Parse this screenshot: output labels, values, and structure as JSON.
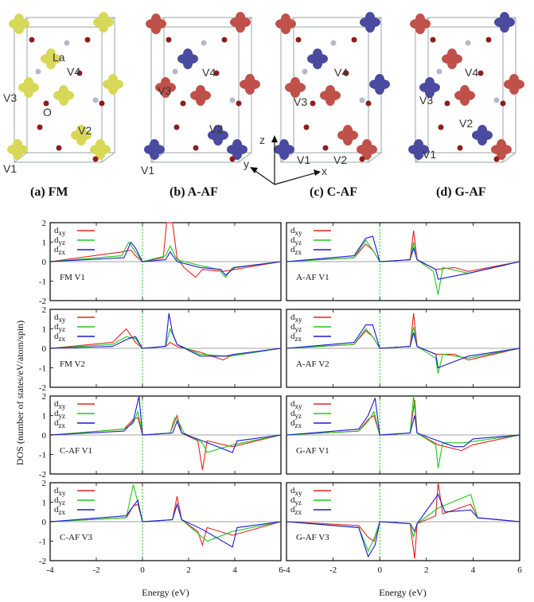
{
  "structures": {
    "panels": [
      {
        "title": "(a) FM",
        "labels": [
          "La",
          "V4",
          "V3",
          "O",
          "V2",
          "V1"
        ]
      },
      {
        "title": "(b) A-AF",
        "labels": [
          "V4",
          "V3",
          "V2",
          "V1"
        ]
      },
      {
        "title": "(c) C-AF",
        "labels": [
          "V4",
          "V3",
          "V2",
          "V1"
        ]
      },
      {
        "title": "(d) G-AF",
        "labels": [
          "V4",
          "V3",
          "V2",
          "V1"
        ]
      }
    ],
    "axes": {
      "z": "z",
      "y": "y",
      "x": "x"
    },
    "colors": {
      "fm": "#d8d858",
      "up": "#c0504a",
      "down": "#4a4aa0",
      "cell": "#9aa6a6",
      "oxygen": "#8e1d1d",
      "la": "#b4b8c8"
    }
  },
  "chart_data": {
    "type": "line",
    "ylabel": "DOS (number of states/eV/atom/spin)",
    "xlabel": "Energy (eV)",
    "xlim": [
      -4,
      6
    ],
    "ylim": [
      -2,
      2
    ],
    "xticks": [
      "-4",
      "-2",
      "0",
      "2",
      "4",
      "6"
    ],
    "yticks": [
      "2",
      "1",
      "0",
      "-1",
      "-2"
    ],
    "fermi_level": 0,
    "legend": [
      "d",
      "d",
      "d"
    ],
    "legend_sub": [
      "xy",
      "yz",
      "zx"
    ],
    "colors": {
      "dxy": "#e8221e",
      "dyz": "#1ec81e",
      "dzx": "#1a1ad8",
      "fermi": "#1cc81c"
    },
    "panels": [
      {
        "label": "FM V1",
        "dxy": [
          [
            -0.9,
            0.5
          ],
          [
            -0.5,
            0.6
          ],
          [
            -0.3,
            0.3
          ],
          [
            0,
            0
          ],
          [
            0.9,
            0.2
          ],
          [
            1.05,
            2
          ],
          [
            1.3,
            2
          ],
          [
            1.5,
            0.2
          ],
          [
            1.8,
            -0.3
          ],
          [
            2.3,
            -0.8
          ],
          [
            2.6,
            -0.4
          ],
          [
            3.5,
            -0.5
          ],
          [
            4,
            -0.4
          ]
        ],
        "dyz": [
          [
            -0.9,
            0.3
          ],
          [
            -0.6,
            1.0
          ],
          [
            -0.3,
            0.5
          ],
          [
            0,
            0
          ],
          [
            1,
            0.3
          ],
          [
            1.2,
            0.8
          ],
          [
            1.5,
            0.1
          ],
          [
            2.5,
            -0.2
          ],
          [
            3.3,
            -0.4
          ],
          [
            3.6,
            -0.8
          ],
          [
            3.9,
            -0.3
          ]
        ],
        "dzx": [
          [
            -0.8,
            0.2
          ],
          [
            -0.5,
            1.0
          ],
          [
            -0.3,
            0.7
          ],
          [
            0,
            0
          ],
          [
            1,
            0.1
          ],
          [
            1.2,
            0.5
          ],
          [
            1.5,
            0
          ],
          [
            2.5,
            -0.3
          ],
          [
            3.4,
            -0.4
          ],
          [
            3.6,
            -0.7
          ],
          [
            4,
            -0.3
          ]
        ]
      },
      {
        "label": "A-AF V1",
        "dxy": [
          [
            -1.1,
            0.2
          ],
          [
            -0.6,
            0.9
          ],
          [
            -0.3,
            0.6
          ],
          [
            0,
            0
          ],
          [
            1.3,
            0.1
          ],
          [
            1.45,
            1.6
          ],
          [
            1.6,
            0.1
          ],
          [
            2.4,
            -0.4
          ],
          [
            3.2,
            -0.3
          ],
          [
            3.8,
            -0.5
          ]
        ],
        "dyz": [
          [
            -1.1,
            0.2
          ],
          [
            -0.6,
            1.1
          ],
          [
            -0.3,
            0.6
          ],
          [
            0,
            0
          ],
          [
            1.3,
            0.1
          ],
          [
            1.45,
            1.0
          ],
          [
            1.6,
            0.1
          ],
          [
            2.3,
            -0.5
          ],
          [
            2.5,
            -1.7
          ],
          [
            2.7,
            -0.3
          ],
          [
            3.8,
            -0.6
          ]
        ],
        "dzx": [
          [
            -1.1,
            0.3
          ],
          [
            -0.6,
            1.2
          ],
          [
            -0.3,
            1.3
          ],
          [
            0,
            0
          ],
          [
            1.3,
            0.1
          ],
          [
            1.45,
            0.7
          ],
          [
            1.6,
            0.1
          ],
          [
            2.4,
            -0.4
          ],
          [
            2.5,
            -0.9
          ],
          [
            3.8,
            -0.6
          ]
        ]
      },
      {
        "label": "FM V2",
        "dxy": [
          [
            -1.3,
            0.3
          ],
          [
            -0.7,
            1.0
          ],
          [
            -0.3,
            0.3
          ],
          [
            0,
            0
          ],
          [
            1,
            0.1
          ],
          [
            1.2,
            0.3
          ],
          [
            1.5,
            0.1
          ],
          [
            2.5,
            -0.2
          ],
          [
            3.5,
            -0.6
          ],
          [
            3.8,
            -0.4
          ]
        ],
        "dyz": [
          [
            -1.3,
            0.2
          ],
          [
            -0.7,
            0.6
          ],
          [
            -0.3,
            0.5
          ],
          [
            0,
            0
          ],
          [
            1,
            0.1
          ],
          [
            1.2,
            1.0
          ],
          [
            1.5,
            0.2
          ],
          [
            2.5,
            -0.3
          ],
          [
            3.5,
            -0.4
          ],
          [
            3.8,
            -0.4
          ]
        ],
        "dzx": [
          [
            -1.3,
            0.1
          ],
          [
            -0.6,
            0.5
          ],
          [
            -0.3,
            0.6
          ],
          [
            0,
            0
          ],
          [
            1,
            0.1
          ],
          [
            1.15,
            1.8
          ],
          [
            1.3,
            0.8
          ],
          [
            1.5,
            0.2
          ],
          [
            2.5,
            -0.4
          ],
          [
            3.6,
            -0.4
          ],
          [
            4,
            -0.3
          ]
        ]
      },
      {
        "label": "A-AF V2",
        "dxy": [
          [
            -1.1,
            0.2
          ],
          [
            -0.6,
            0.9
          ],
          [
            -0.3,
            0.6
          ],
          [
            0,
            0
          ],
          [
            1.3,
            0.1
          ],
          [
            1.45,
            1.8
          ],
          [
            1.6,
            0.1
          ],
          [
            2.4,
            -0.3
          ],
          [
            3.2,
            -0.3
          ],
          [
            3.8,
            -0.6
          ]
        ],
        "dyz": [
          [
            -1.1,
            0.2
          ],
          [
            -0.6,
            1.0
          ],
          [
            -0.3,
            0.6
          ],
          [
            0,
            0
          ],
          [
            1.3,
            0.1
          ],
          [
            1.45,
            1.1
          ],
          [
            1.6,
            0.1
          ],
          [
            2.4,
            -0.5
          ],
          [
            2.5,
            -1.3
          ],
          [
            2.7,
            -0.3
          ],
          [
            3.8,
            -0.5
          ]
        ],
        "dzx": [
          [
            -1.1,
            0.3
          ],
          [
            -0.6,
            1.2
          ],
          [
            -0.3,
            1.2
          ],
          [
            0,
            0
          ],
          [
            1.3,
            0.1
          ],
          [
            1.45,
            0.8
          ],
          [
            1.6,
            0.1
          ],
          [
            2.4,
            -0.3
          ],
          [
            2.5,
            -1.0
          ],
          [
            3.8,
            -0.4
          ]
        ]
      },
      {
        "label": "C-AF V1",
        "dxy": [
          [
            -0.8,
            0.3
          ],
          [
            -0.4,
            0.8
          ],
          [
            -0.2,
            0.9
          ],
          [
            0,
            0
          ],
          [
            1.2,
            0.1
          ],
          [
            1.5,
            1.0
          ],
          [
            1.7,
            0.1
          ],
          [
            2.4,
            -0.3
          ],
          [
            2.6,
            -1.8
          ],
          [
            2.8,
            -0.3
          ],
          [
            3.9,
            -0.6
          ]
        ],
        "dyz": [
          [
            -0.8,
            0.3
          ],
          [
            -0.4,
            0.6
          ],
          [
            -0.2,
            1.2
          ],
          [
            0,
            0
          ],
          [
            1.2,
            0.1
          ],
          [
            1.4,
            0.9
          ],
          [
            1.6,
            0.6
          ],
          [
            1.8,
            0.1
          ],
          [
            2.6,
            -0.4
          ],
          [
            2.8,
            -0.9
          ],
          [
            3.9,
            -0.5
          ]
        ],
        "dzx": [
          [
            -0.8,
            0.2
          ],
          [
            -0.4,
            0.7
          ],
          [
            -0.15,
            2
          ],
          [
            0,
            0
          ],
          [
            1.3,
            0.1
          ],
          [
            1.5,
            0.7
          ],
          [
            1.7,
            0.1
          ],
          [
            2.6,
            -0.3
          ],
          [
            3.9,
            -0.9
          ],
          [
            4.1,
            -0.3
          ]
        ]
      },
      {
        "label": "G-AF V1",
        "dxy": [
          [
            -0.9,
            0.2
          ],
          [
            -0.5,
            0.8
          ],
          [
            -0.25,
            1.0
          ],
          [
            0,
            0
          ],
          [
            1.3,
            0.1
          ],
          [
            1.5,
            1.8
          ],
          [
            1.6,
            0.1
          ],
          [
            2.5,
            -0.5
          ],
          [
            3.5,
            -0.8
          ],
          [
            4,
            -0.5
          ]
        ],
        "dyz": [
          [
            -0.9,
            0.2
          ],
          [
            -0.5,
            0.7
          ],
          [
            -0.25,
            1.2
          ],
          [
            0,
            0
          ],
          [
            1.3,
            0.1
          ],
          [
            1.45,
            2
          ],
          [
            1.6,
            0.1
          ],
          [
            2.4,
            -0.5
          ],
          [
            2.5,
            -1.7
          ],
          [
            2.7,
            -0.4
          ],
          [
            3.6,
            -0.4
          ]
        ],
        "dzx": [
          [
            -0.9,
            0.3
          ],
          [
            -0.5,
            1.0
          ],
          [
            -0.2,
            1.9
          ],
          [
            0,
            0
          ],
          [
            1.3,
            0.1
          ],
          [
            1.5,
            1.0
          ],
          [
            1.6,
            0.1
          ],
          [
            2.5,
            -0.3
          ],
          [
            3.2,
            -0.6
          ],
          [
            3.6,
            -0.6
          ],
          [
            4,
            -0.2
          ]
        ]
      },
      {
        "label": "C-AF V3",
        "dxy": [
          [
            -0.7,
            0.2
          ],
          [
            -0.4,
            0.8
          ],
          [
            -0.2,
            0.9
          ],
          [
            0,
            0
          ],
          [
            1.3,
            0.1
          ],
          [
            1.5,
            1.3
          ],
          [
            1.7,
            0.1
          ],
          [
            2.4,
            -0.5
          ],
          [
            2.6,
            -1.2
          ],
          [
            2.8,
            -0.3
          ],
          [
            3.9,
            -0.7
          ]
        ],
        "dyz": [
          [
            -0.7,
            0.2
          ],
          [
            -0.4,
            1.9
          ],
          [
            -0.2,
            1.0
          ],
          [
            0,
            0
          ],
          [
            1.3,
            0.1
          ],
          [
            1.5,
            0.9
          ],
          [
            1.7,
            0.1
          ],
          [
            2.6,
            -0.8
          ],
          [
            2.8,
            -1.0
          ],
          [
            3.9,
            -0.5
          ]
        ],
        "dzx": [
          [
            -0.7,
            0.3
          ],
          [
            -0.4,
            0.8
          ],
          [
            -0.2,
            1.1
          ],
          [
            0,
            0
          ],
          [
            1.3,
            0.1
          ],
          [
            1.5,
            0.9
          ],
          [
            1.7,
            0.1
          ],
          [
            2.6,
            -0.4
          ],
          [
            3.9,
            -1.3
          ],
          [
            4.1,
            -0.3
          ]
        ]
      },
      {
        "label": "G-AF V3",
        "dxy": [
          [
            -0.9,
            -0.2
          ],
          [
            -0.5,
            -0.8
          ],
          [
            -0.25,
            -1.0
          ],
          [
            0,
            0
          ],
          [
            1.3,
            -0.1
          ],
          [
            1.5,
            -1.9
          ],
          [
            1.6,
            -0.1
          ],
          [
            2.4,
            0.3
          ],
          [
            2.5,
            2
          ],
          [
            2.7,
            0.4
          ],
          [
            3.9,
            0.9
          ],
          [
            4.2,
            0.2
          ]
        ],
        "dyz": [
          [
            -0.9,
            -0.3
          ],
          [
            -0.5,
            -1.5
          ],
          [
            -0.25,
            -0.9
          ],
          [
            0,
            0
          ],
          [
            1.3,
            -0.1
          ],
          [
            1.45,
            -0.8
          ],
          [
            1.6,
            -0.1
          ],
          [
            2.5,
            0.7
          ],
          [
            3.9,
            1.4
          ],
          [
            4.2,
            0.2
          ]
        ],
        "dzx": [
          [
            -0.9,
            -0.3
          ],
          [
            -0.5,
            -1.8
          ],
          [
            -0.2,
            -1.2
          ],
          [
            0,
            0
          ],
          [
            1.3,
            -0.1
          ],
          [
            1.5,
            -0.5
          ],
          [
            1.6,
            -0.1
          ],
          [
            2.5,
            1.4
          ],
          [
            2.8,
            0.5
          ],
          [
            3.9,
            0.6
          ],
          [
            4.2,
            0.2
          ]
        ]
      }
    ]
  }
}
